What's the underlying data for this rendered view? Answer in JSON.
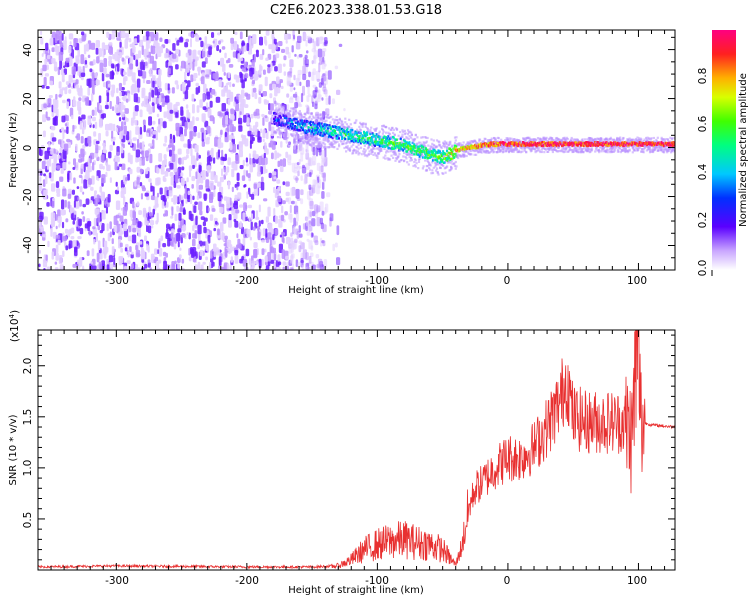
{
  "title": "C2E6.2023.338.01.53.G18",
  "top_panel": {
    "xlabel": "Height of straight line (km)",
    "ylabel": "Frequency (Hz)",
    "xticks": [
      "-300",
      "-200",
      "-100",
      "0",
      "100"
    ],
    "yticks": [
      "40",
      "20",
      "0",
      "-20",
      "-40"
    ]
  },
  "colorbar": {
    "label": "Normalized spectral amplitude",
    "ticks": [
      "0.0",
      "0.2",
      "0.4",
      "0.6",
      "0.8"
    ]
  },
  "bottom_panel": {
    "xlabel": "Height of straight line (km)",
    "ylabel": "SNR (10 * v/v)",
    "yscale": "(x10",
    "yscale_exp": "4",
    "xticks": [
      "-300",
      "-200",
      "-100",
      "0",
      "100"
    ],
    "yticks": [
      "0.5",
      "1.0",
      "1.5",
      "2.0"
    ]
  },
  "colors": {
    "snr_line": "#e83030",
    "noise": "#7a2cff"
  },
  "chart_data": [
    {
      "type": "heatmap",
      "title": "C2E6.2023.338.01.53.G18",
      "xlabel": "Height of straight line (km)",
      "ylabel": "Frequency (Hz)",
      "xlim": [
        -360,
        128
      ],
      "ylim": [
        -50,
        48
      ],
      "zlabel": "Normalized spectral amplitude",
      "zlim": [
        0,
        1
      ],
      "noise_region_x": [
        -360,
        -140
      ],
      "signal_track": {
        "x": [
          -180,
          -160,
          -140,
          -120,
          -100,
          -80,
          -60,
          -50,
          -40,
          -30,
          -20,
          -10,
          0,
          20,
          40,
          60,
          80,
          100,
          128
        ],
        "frequency": [
          12,
          9,
          7,
          5,
          3,
          1,
          -3,
          -4,
          -1,
          0,
          1,
          1.5,
          1.5,
          1.5,
          1.5,
          1.5,
          1.5,
          1.5,
          1.5
        ],
        "peak_amplitude": [
          0.3,
          0.4,
          0.5,
          0.55,
          0.55,
          0.6,
          0.6,
          0.6,
          0.8,
          0.8,
          0.85,
          0.9,
          0.95,
          0.95,
          0.95,
          0.95,
          0.95,
          0.95,
          0.95
        ]
      }
    },
    {
      "type": "line",
      "xlabel": "Height of straight line (km)",
      "ylabel": "SNR (10 * v/v)",
      "xlim": [
        -360,
        128
      ],
      "ylim": [
        0,
        23500
      ],
      "series": [
        {
          "x": [
            -360,
            -300,
            -200,
            -150,
            -130,
            -120,
            -110,
            -100,
            -90,
            -80,
            -70,
            -60,
            -50,
            -40,
            -35,
            -30,
            -25,
            -20,
            -10,
            0,
            10,
            20,
            30,
            40,
            45,
            50,
            60,
            70,
            80,
            90,
            95,
            98,
            100,
            102,
            110,
            128
          ],
          "values": [
            300,
            400,
            300,
            300,
            400,
            1000,
            2000,
            2500,
            2800,
            3000,
            2700,
            2500,
            2000,
            500,
            2500,
            6000,
            8000,
            8500,
            10000,
            11000,
            11000,
            12000,
            14000,
            16500,
            19000,
            15000,
            14500,
            14500,
            14500,
            14500,
            13000,
            20000,
            22000,
            14500,
            14200,
            14000
          ]
        }
      ]
    }
  ]
}
